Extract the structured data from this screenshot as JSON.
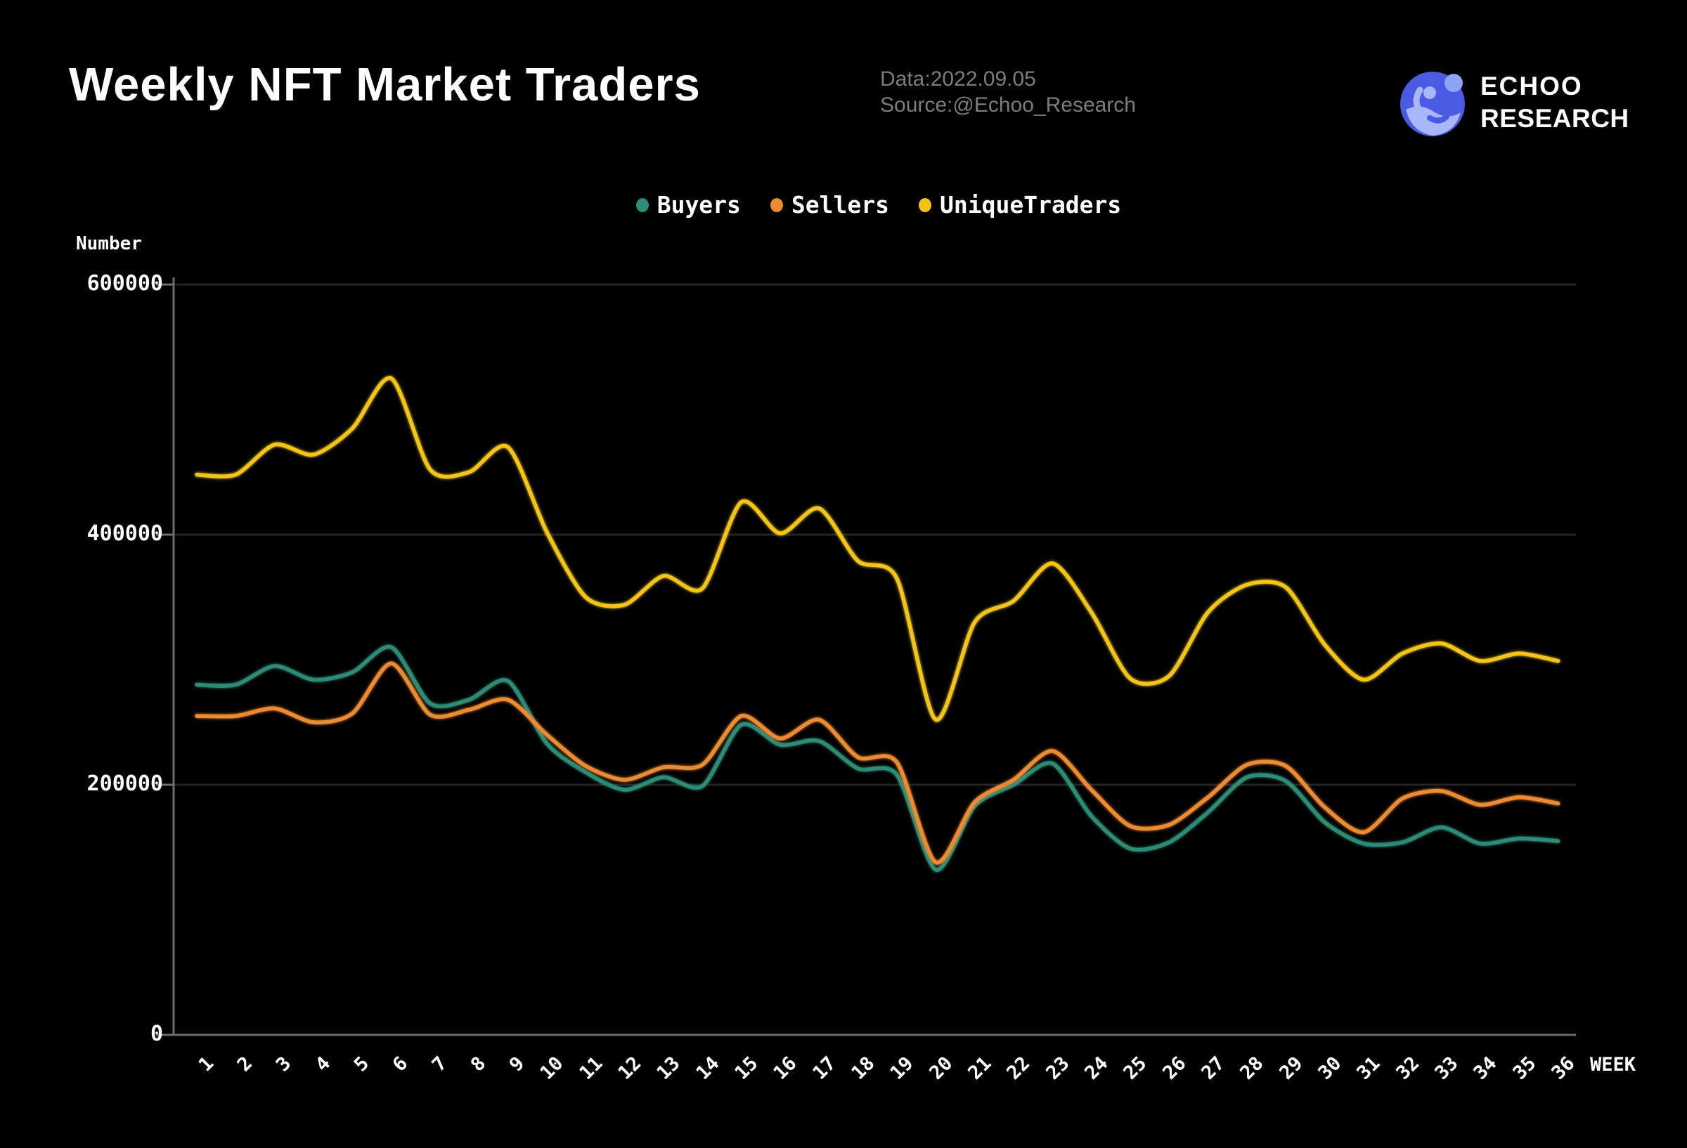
{
  "header": {
    "title": "Weekly NFT Market Traders",
    "meta": {
      "line1": "Data:2022.09.05",
      "line2": "Source:@Echoo_Research"
    },
    "brand": {
      "name_line1": "ECHOO",
      "name_line2": "RESEARCH"
    }
  },
  "ylabel": "Number",
  "xlabel": "WEEK",
  "chart_data": {
    "type": "line",
    "smooth": true,
    "title": "Weekly NFT Market Traders",
    "xlabel": "WEEK",
    "ylabel": "Number",
    "grid": true,
    "legend_position": "top-center",
    "ylim": [
      0,
      600000
    ],
    "yticks": [
      0,
      200000,
      400000,
      600000
    ],
    "x": [
      1,
      2,
      3,
      4,
      5,
      6,
      7,
      8,
      9,
      10,
      11,
      12,
      13,
      14,
      15,
      16,
      17,
      18,
      19,
      20,
      21,
      22,
      23,
      24,
      25,
      26,
      27,
      28,
      29,
      30,
      31,
      32,
      33,
      34,
      35,
      36
    ],
    "series": [
      {
        "name": "Buyers",
        "color": "#2e8b76",
        "values": [
          280000,
          280000,
          295000,
          284000,
          290000,
          310000,
          265000,
          268000,
          283000,
          233000,
          210000,
          196000,
          206000,
          199000,
          248000,
          232000,
          235000,
          213000,
          208000,
          132000,
          183000,
          200000,
          217000,
          175000,
          149000,
          154000,
          178000,
          206000,
          203000,
          170000,
          153000,
          154000,
          166000,
          153000,
          157000,
          155000
        ]
      },
      {
        "name": "Sellers",
        "color": "#ec8b31",
        "values": [
          255000,
          255000,
          261000,
          250000,
          257000,
          297000,
          256000,
          260000,
          268000,
          240000,
          215000,
          204000,
          214000,
          216000,
          255000,
          237000,
          252000,
          222000,
          218000,
          138000,
          186000,
          204000,
          227000,
          196000,
          167000,
          168000,
          190000,
          216000,
          215000,
          182000,
          162000,
          189000,
          195000,
          184000,
          190000,
          185000
        ]
      },
      {
        "name": "UniqueTraders",
        "color": "#f2c513",
        "values": [
          448000,
          448000,
          472000,
          464000,
          485000,
          525000,
          452000,
          450000,
          470000,
          402000,
          350000,
          344000,
          367000,
          357000,
          426000,
          401000,
          421000,
          379000,
          365000,
          252000,
          330000,
          347000,
          377000,
          338000,
          285000,
          287000,
          338000,
          360000,
          358000,
          312000,
          284000,
          305000,
          313000,
          299000,
          305000,
          299000
        ]
      }
    ]
  },
  "colors": {
    "background": "#000000",
    "grid": "#242424",
    "axis": "#6e6e6e",
    "tick_text": "#ffffff",
    "meta_text": "#7c7c7c",
    "logo_blue": "#4a5ae2",
    "logo_light": "#a9b6f7",
    "logo_dot": "#8fa2f4"
  }
}
